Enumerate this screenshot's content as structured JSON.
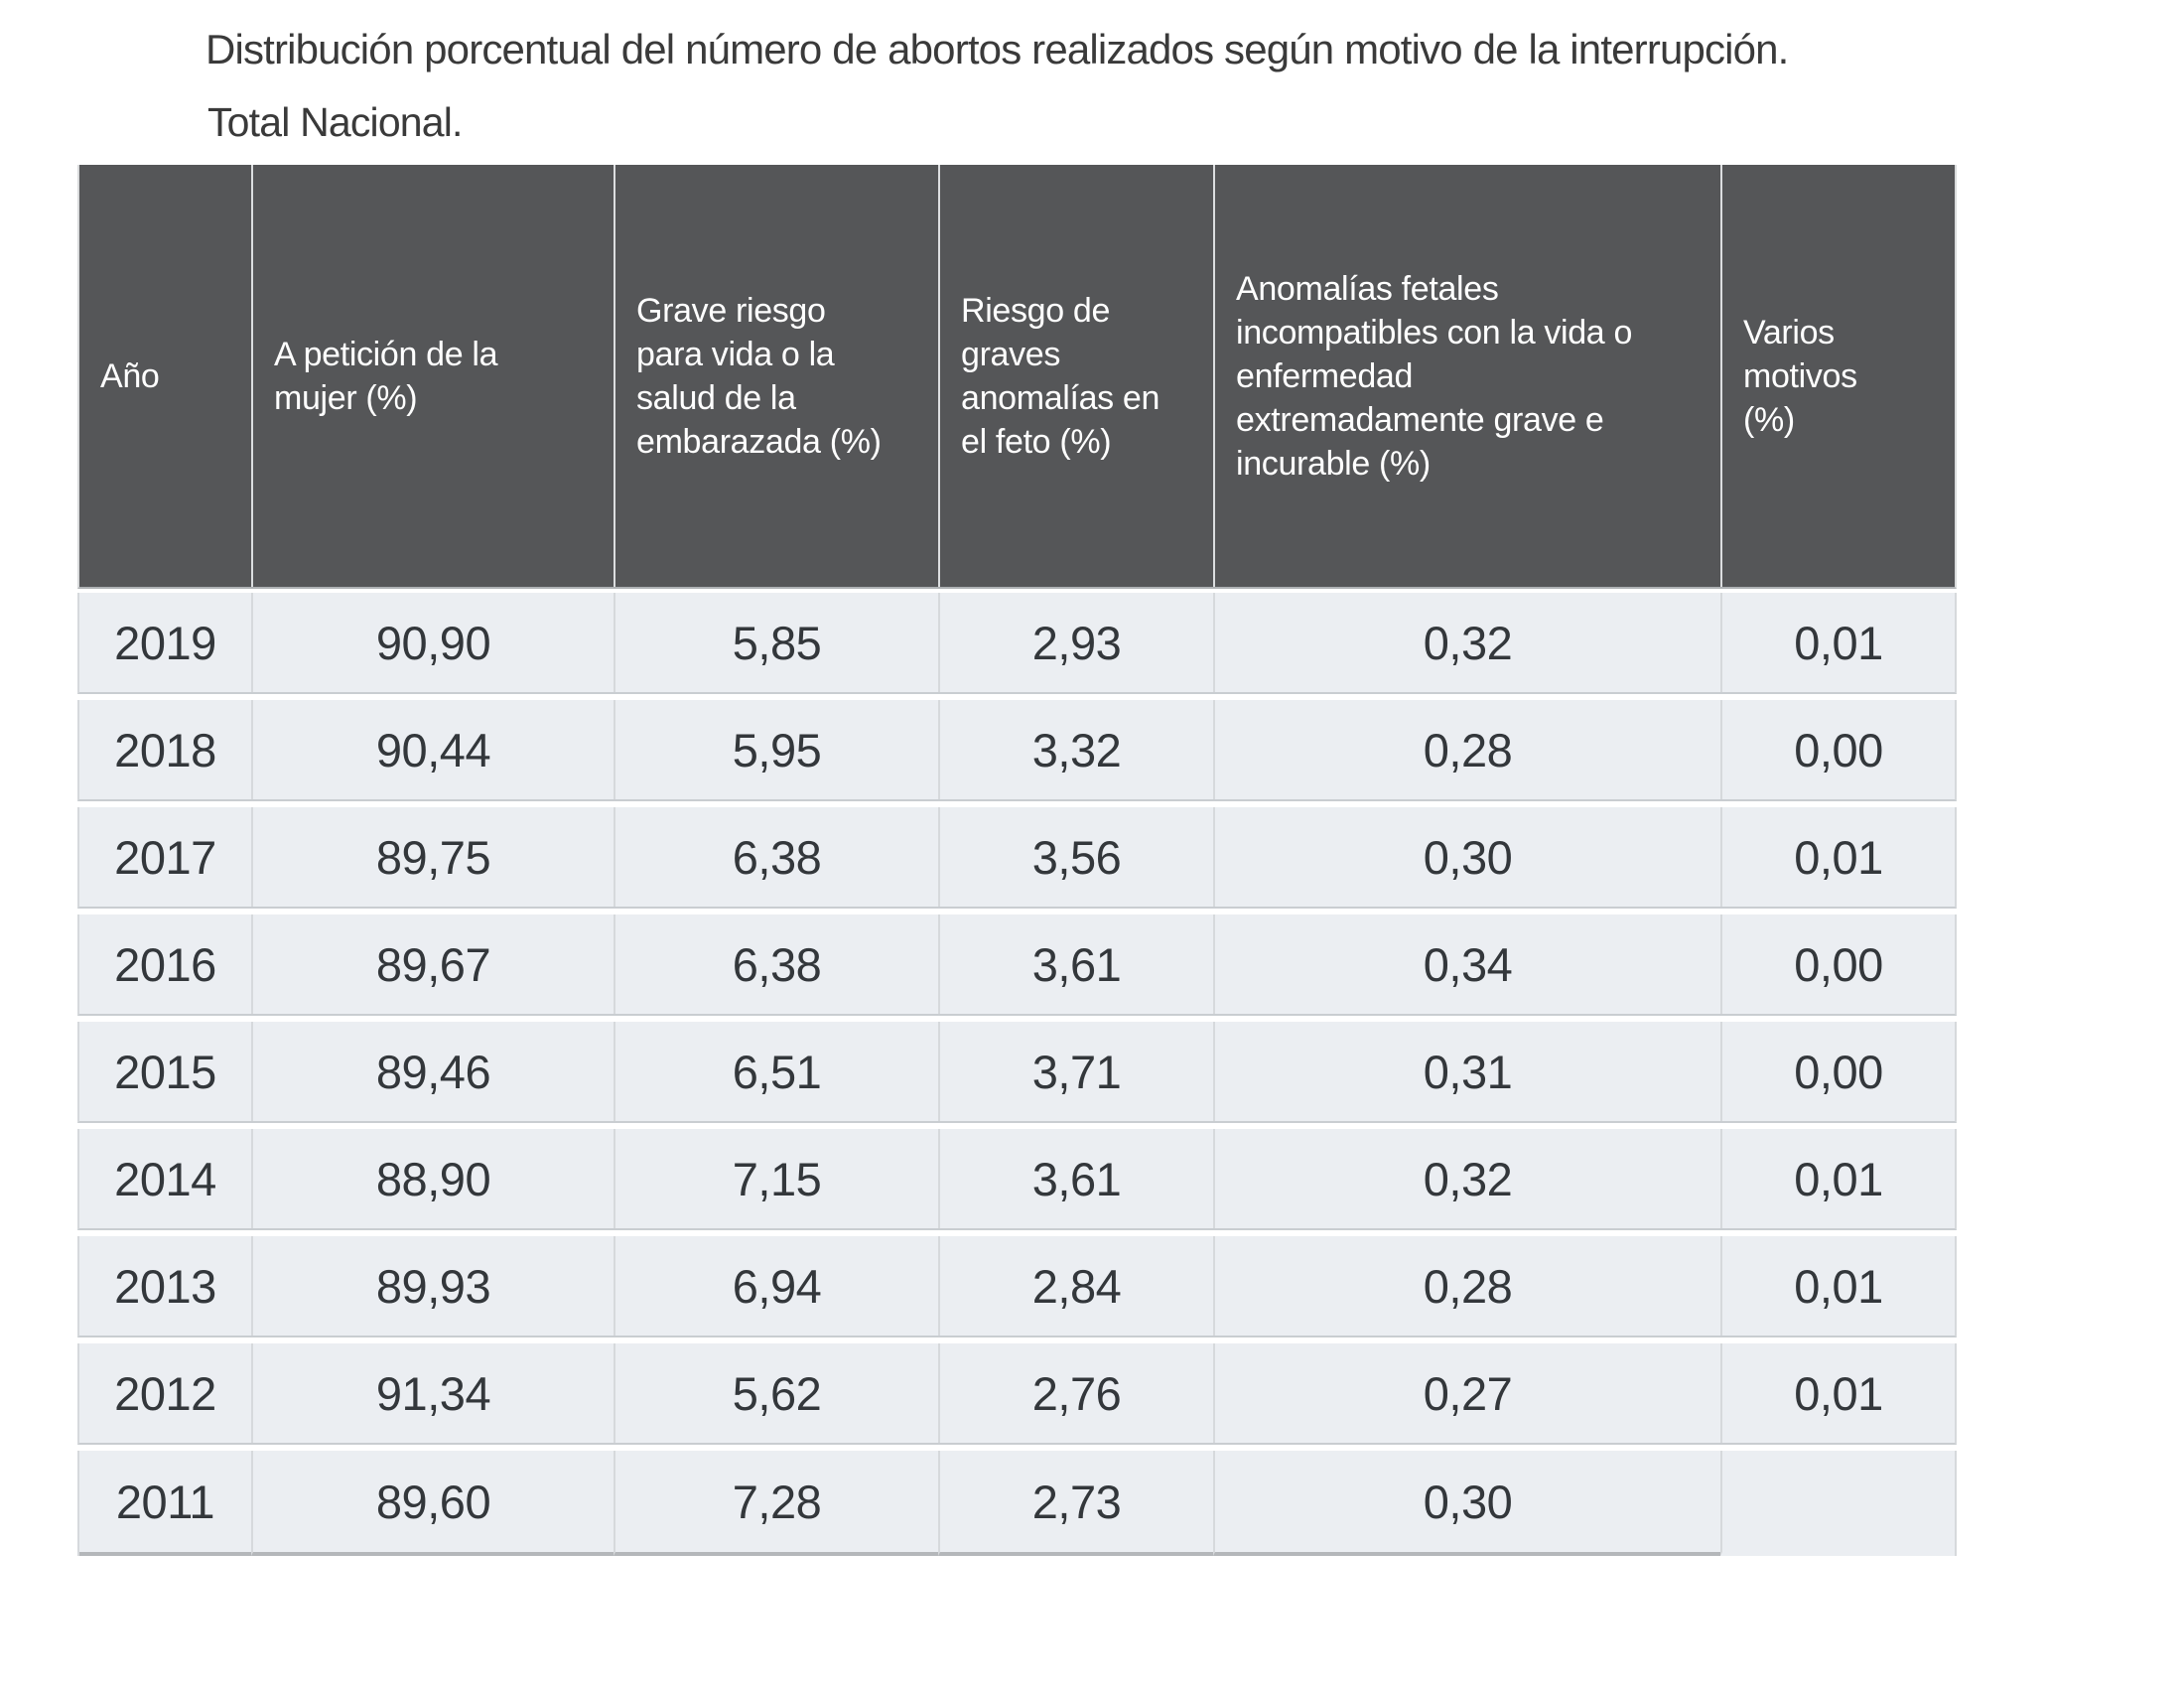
{
  "title": "Distribución porcentual del número de abortos realizados según motivo de la interrupción.",
  "subtitle": "Total Nacional.",
  "colors": {
    "header_background": "#555658",
    "header_text": "#ffffff",
    "row_background": "#ebeef2",
    "grid_line": "#d6d9dc",
    "table_bottom_border": "#b4b7ba",
    "body_text": "#33373b",
    "title_text": "#3a3a3a"
  },
  "table": {
    "columns": [
      {
        "label": "Año"
      },
      {
        "label": "A petición de la\nmujer (%)"
      },
      {
        "label": "Grave riesgo\npara vida o la\nsalud de la\nembarazada (%)"
      },
      {
        "label": "Riesgo de\ngraves\nanomalías en\nel feto (%)"
      },
      {
        "label": "Anomalías fetales\nincompatibles con la vida o\nenfermedad\nextremadamente grave e\nincurable (%)"
      },
      {
        "label": "Varios\nmotivos\n(%)"
      }
    ],
    "rows": [
      {
        "year": "2019",
        "values": [
          "90,90",
          "5,85",
          "2,93",
          "0,32",
          "0,01"
        ]
      },
      {
        "year": "2018",
        "values": [
          "90,44",
          "5,95",
          "3,32",
          "0,28",
          "0,00"
        ]
      },
      {
        "year": "2017",
        "values": [
          "89,75",
          "6,38",
          "3,56",
          "0,30",
          "0,01"
        ]
      },
      {
        "year": "2016",
        "values": [
          "89,67",
          "6,38",
          "3,61",
          "0,34",
          "0,00"
        ]
      },
      {
        "year": "2015",
        "values": [
          "89,46",
          "6,51",
          "3,71",
          "0,31",
          "0,00"
        ]
      },
      {
        "year": "2014",
        "values": [
          "88,90",
          "7,15",
          "3,61",
          "0,32",
          "0,01"
        ]
      },
      {
        "year": "2013",
        "values": [
          "89,93",
          "6,94",
          "2,84",
          "0,28",
          "0,01"
        ]
      },
      {
        "year": "2012",
        "values": [
          "91,34",
          "5,62",
          "2,76",
          "0,27",
          "0,01"
        ]
      },
      {
        "year": "2011",
        "values": [
          "89,60",
          "7,28",
          "2,73",
          "0,30",
          ""
        ]
      }
    ]
  },
  "chart_data": {
    "type": "table",
    "title": "Distribución porcentual del número de abortos realizados según motivo de la interrupción.",
    "subtitle": "Total Nacional.",
    "columns": [
      "Año",
      "A petición de la mujer (%)",
      "Grave riesgo para vida o la salud de la embarazada (%)",
      "Riesgo de graves anomalías en el feto (%)",
      "Anomalías fetales incompatibles con la vida o enfermedad extremadamente grave e incurable (%)",
      "Varios motivos (%)"
    ],
    "rows": [
      [
        "2019",
        90.9,
        5.85,
        2.93,
        0.32,
        0.01
      ],
      [
        "2018",
        90.44,
        5.95,
        3.32,
        0.28,
        0.0
      ],
      [
        "2017",
        89.75,
        6.38,
        3.56,
        0.3,
        0.01
      ],
      [
        "2016",
        89.67,
        6.38,
        3.61,
        0.34,
        0.0
      ],
      [
        "2015",
        89.46,
        6.51,
        3.71,
        0.31,
        0.0
      ],
      [
        "2014",
        88.9,
        7.15,
        3.61,
        0.32,
        0.01
      ],
      [
        "2013",
        89.93,
        6.94,
        2.84,
        0.28,
        0.01
      ],
      [
        "2012",
        91.34,
        5.62,
        2.76,
        0.27,
        0.01
      ],
      [
        "2011",
        89.6,
        7.28,
        2.73,
        0.3,
        null
      ]
    ]
  }
}
